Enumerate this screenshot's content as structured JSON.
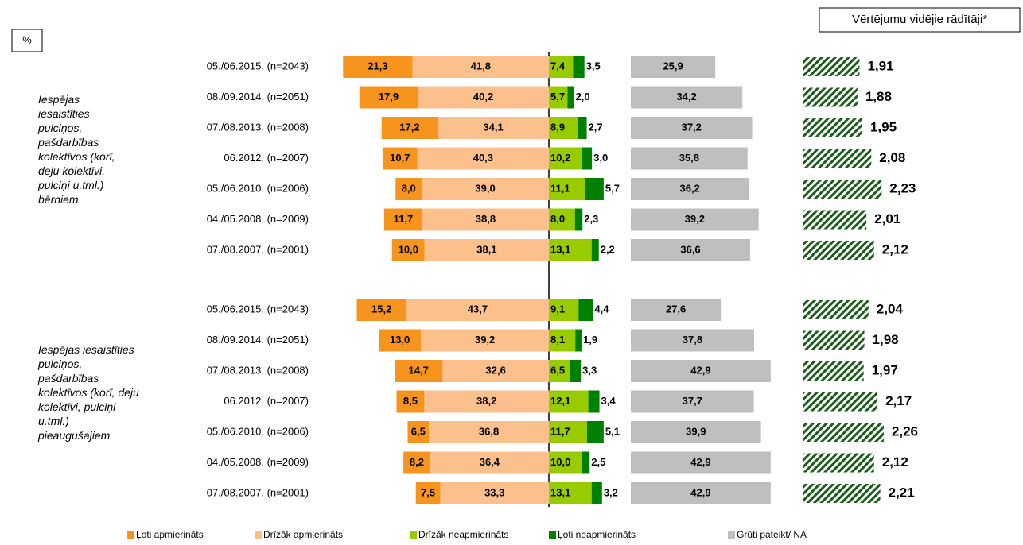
{
  "chart_data": {
    "type": "bar",
    "unit_label": "%",
    "series": [
      {
        "name": "Ļoti apmierināts",
        "color": "#f7941d",
        "values": [
          21.3,
          17.9,
          17.2,
          10.7,
          8.0,
          11.7,
          10.0,
          15.2,
          13.0,
          14.7,
          8.5,
          6.5,
          8.2,
          7.5
        ],
        "value_labels": [
          "21,3",
          "17,9",
          "17,2",
          "10,7",
          "8,0",
          "11,7",
          "10,0",
          "15,2",
          "13,0",
          "14,7",
          "8,5",
          "6,5",
          "8,2",
          "7,5"
        ]
      },
      {
        "name": "Drīzāk apmierināts",
        "color": "#fbc08c",
        "values": [
          41.8,
          40.2,
          34.1,
          40.3,
          39.0,
          38.8,
          38.1,
          43.7,
          39.2,
          32.6,
          38.2,
          36.8,
          36.4,
          33.3
        ],
        "value_labels": [
          "41,8",
          "40,2",
          "34,1",
          "40,3",
          "39,0",
          "38,8",
          "38,1",
          "43,7",
          "39,2",
          "32,6",
          "38,2",
          "36,8",
          "36,4",
          "33,3"
        ]
      },
      {
        "name": "Drīzāk neapmierināts",
        "color": "#99cc00",
        "values": [
          7.4,
          5.7,
          8.9,
          10.2,
          11.1,
          8.0,
          13.1,
          9.1,
          8.1,
          6.5,
          12.1,
          11.7,
          10.0,
          13.1
        ],
        "value_labels": [
          "7,4",
          "5,7",
          "8,9",
          "10,2",
          "11,1",
          "8,0",
          "13,1",
          "9,1",
          "8,1",
          "6,5",
          "12,1",
          "11,7",
          "10,0",
          "13,1"
        ]
      },
      {
        "name": "Ļoti neapmierināts",
        "color": "#008000",
        "values": [
          3.5,
          2.0,
          2.7,
          3.0,
          5.7,
          2.3,
          2.2,
          4.4,
          1.9,
          3.3,
          3.4,
          5.1,
          2.5,
          3.2
        ],
        "value_labels": [
          "3,5",
          "2,0",
          "2,7",
          "3,0",
          "5,7",
          "2,3",
          "2,2",
          "4,4",
          "1,9",
          "3,3",
          "3,4",
          "5,1",
          "2,5",
          "3,2"
        ]
      },
      {
        "name": "Grūti pateikt/ NA",
        "color": "#bfbfbf",
        "values": [
          25.9,
          34.2,
          37.2,
          35.8,
          36.2,
          39.2,
          36.6,
          27.6,
          37.8,
          42.9,
          37.7,
          39.9,
          42.9,
          42.9
        ],
        "value_labels": [
          "25,9",
          "34,2",
          "37,2",
          "35,8",
          "36,2",
          "39,2",
          "36,6",
          "27,6",
          "37,8",
          "42,9",
          "37,7",
          "39,9",
          "42,9",
          "42,9"
        ]
      }
    ],
    "groups": [
      {
        "label_lines": [
          "Iespējas",
          "iesaistīties",
          "pulciņos,",
          "pašdarbības",
          "kolektīvos (korī,",
          "deju kolektīvi,",
          "pulciņi u.tml.)",
          "bērniem"
        ],
        "categories": [
          "05./06.2015. (n=2043)",
          "08./09.2014. (n=2051)",
          "07./08.2013. (n=2008)",
          "06.2012. (n=2007)",
          "05./06.2010. (n=2006)",
          "04./05.2008. (n=2009)",
          "07./08.2007. (n=2001)"
        ]
      },
      {
        "label_lines": [
          "Iespējas iesaistīties",
          "pulciņos,",
          "pašdarbības",
          "kolektīvos (korī, deju",
          "kolektīvi, pulciņi",
          "u.tml.)",
          "pieaugušajiem"
        ],
        "categories": [
          "05./06.2015. (n=2043)",
          "08./09.2014. (n=2051)",
          "07./08.2013. (n=2008)",
          "06.2012. (n=2007)",
          "05./06.2010. (n=2006)",
          "04./05.2008. (n=2009)",
          "07./08.2007. (n=2001)"
        ]
      }
    ],
    "averages": {
      "title": "Vērtējumu vidējie rādītāji*",
      "color": "#1a5c1a",
      "values": [
        1.91,
        1.88,
        1.95,
        2.08,
        2.23,
        2.01,
        2.12,
        2.04,
        1.98,
        1.97,
        2.17,
        2.26,
        2.12,
        2.21
      ],
      "value_labels": [
        "1,91",
        "1,88",
        "1,95",
        "2,08",
        "2,23",
        "2,01",
        "2,12",
        "2,04",
        "1,98",
        "1,97",
        "2,17",
        "2,26",
        "2,12",
        "2,21"
      ]
    }
  }
}
